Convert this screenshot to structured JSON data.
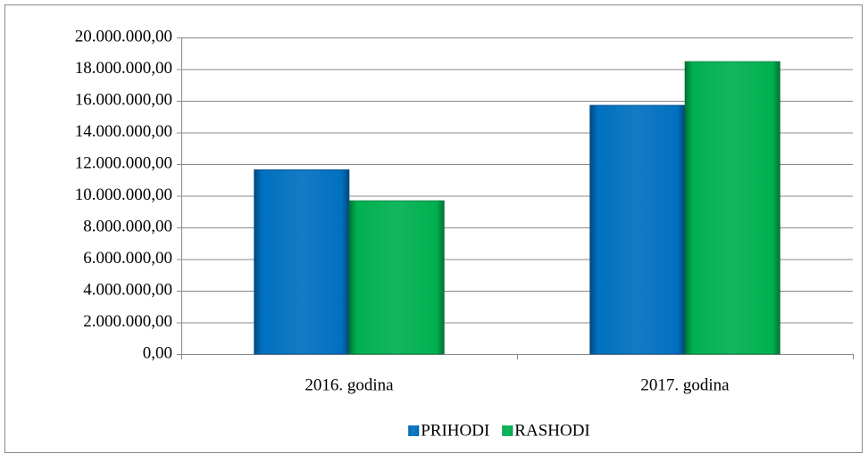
{
  "chart_data": {
    "type": "bar",
    "categories": [
      "2016. godina",
      "2017. godina"
    ],
    "series": [
      {
        "name": "PRIHODI",
        "color": "#0070c0",
        "values": [
          11650000,
          15720000
        ]
      },
      {
        "name": "RASHODI",
        "color": "#00b050",
        "values": [
          9690000,
          18480000
        ]
      }
    ],
    "ylim": [
      0,
      20000000
    ],
    "yticks": [
      {
        "value": 0,
        "label": "0,00"
      },
      {
        "value": 2000000,
        "label": "2.000.000,00"
      },
      {
        "value": 4000000,
        "label": "4.000.000,00"
      },
      {
        "value": 6000000,
        "label": "6.000.000,00"
      },
      {
        "value": 8000000,
        "label": "8.000.000,00"
      },
      {
        "value": 10000000,
        "label": "10.000.000,00"
      },
      {
        "value": 12000000,
        "label": "12.000.000,00"
      },
      {
        "value": 14000000,
        "label": "14.000.000,00"
      },
      {
        "value": 16000000,
        "label": "16.000.000,00"
      },
      {
        "value": 18000000,
        "label": "18.000.000,00"
      },
      {
        "value": 20000000,
        "label": "20.000.000,00"
      }
    ],
    "grid": true,
    "legend": "bottom"
  }
}
